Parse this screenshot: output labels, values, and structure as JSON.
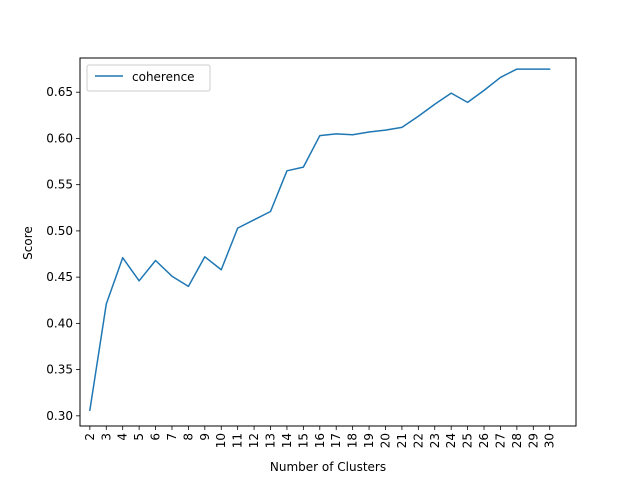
{
  "chart_data": {
    "type": "line",
    "title": "",
    "xlabel": "Number of Clusters",
    "ylabel": "Score",
    "x": [
      2,
      3,
      4,
      5,
      6,
      7,
      8,
      9,
      10,
      11,
      12,
      13,
      14,
      15,
      16,
      17,
      18,
      19,
      20,
      21,
      22,
      23,
      24,
      25,
      26,
      27,
      28,
      29,
      30
    ],
    "xticks": [
      "2",
      "3",
      "4",
      "5",
      "6",
      "7",
      "8",
      "9",
      "10",
      "11",
      "12",
      "13",
      "14",
      "15",
      "16",
      "17",
      "18",
      "19",
      "20",
      "21",
      "22",
      "23",
      "24",
      "25",
      "26",
      "27",
      "28",
      "29",
      "30"
    ],
    "yticks": [
      "0.30",
      "0.35",
      "0.40",
      "0.45",
      "0.50",
      "0.55",
      "0.60",
      "0.65"
    ],
    "ytick_values": [
      0.3,
      0.35,
      0.4,
      0.45,
      0.5,
      0.55,
      0.6,
      0.65
    ],
    "ylim": [
      0.289,
      0.687
    ],
    "xlim": [
      1.4,
      31.6
    ],
    "grid": false,
    "legend_position": "upper-left",
    "series": [
      {
        "name": "coherence",
        "color": "#1f77b4",
        "values": [
          0.306,
          0.421,
          0.471,
          0.446,
          0.468,
          0.451,
          0.44,
          0.472,
          0.458,
          0.503,
          0.512,
          0.521,
          0.565,
          0.569,
          0.603,
          0.605,
          0.604,
          0.607,
          0.609,
          0.612,
          0.624,
          0.637,
          0.649,
          0.639,
          0.652,
          0.666,
          0.675,
          0.675,
          0.675
        ]
      }
    ]
  }
}
